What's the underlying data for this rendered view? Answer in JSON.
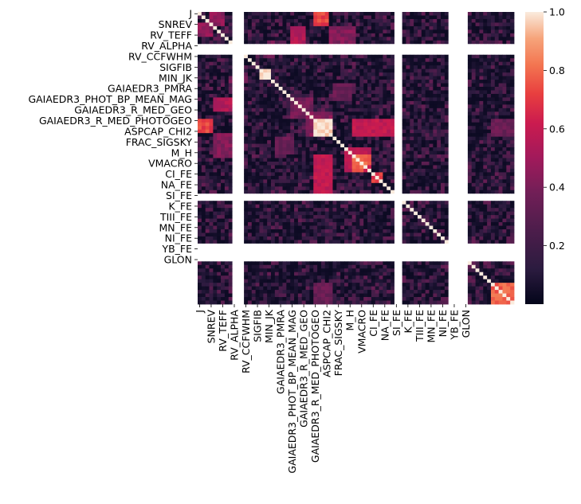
{
  "chart_data": {
    "type": "heatmap",
    "title": "",
    "xlabel": "",
    "ylabel": "",
    "n": 82,
    "tick_labels": [
      "J",
      "SNREV",
      "RV_TEFF",
      "RV_ALPHA",
      "RV_CCFWHM",
      "SIGFIB",
      "MIN_JK",
      "GAIAEDR3_PMRA",
      "GAIAEDR3_PHOT_BP_MEAN_MAG",
      "GAIAEDR3_R_MED_GEO",
      "GAIAEDR3_R_MED_PHOTOGEO",
      "ASPCAP_CHI2",
      "FRAC_SIGSKY",
      "M_H",
      "VMACRO",
      "CI_FE",
      "NA_FE",
      "SI_FE",
      "K_FE",
      "TIII_FE",
      "MN_FE",
      "NI_FE",
      "YB_FE",
      "GLON"
    ],
    "tick_positions": [
      0,
      3,
      6,
      9,
      12,
      15,
      18,
      21,
      24,
      27,
      30,
      33,
      36,
      39,
      42,
      45,
      48,
      51,
      54,
      57,
      60,
      63,
      66,
      69
    ],
    "colorbar": {
      "min": 0.0,
      "max": 1.0,
      "ticks": [
        "0.2",
        "0.4",
        "0.6",
        "0.8",
        "1.0"
      ],
      "tick_values": [
        0.2,
        0.4,
        0.6,
        0.8,
        1.0
      ]
    },
    "nan_rows_cols": [
      9,
      10,
      11,
      51,
      52,
      65,
      66,
      67,
      68,
      69
    ],
    "blocks": [
      {
        "rows": [
          0,
          3
        ],
        "cols": [
          30,
          33
        ],
        "value": 0.72
      },
      {
        "rows": [
          0,
          3
        ],
        "cols": [
          3,
          6
        ],
        "value": 0.45
      },
      {
        "rows": [
          4,
          8
        ],
        "cols": [
          24,
          27
        ],
        "value": 0.55
      },
      {
        "rows": [
          26,
          29
        ],
        "cols": [
          24,
          29
        ],
        "value": 0.38
      },
      {
        "rows": [
          30,
          34
        ],
        "cols": [
          30,
          34
        ],
        "value": 0.97
      },
      {
        "rows": [
          28,
          33
        ],
        "cols": [
          28,
          34
        ],
        "value": 0.42
      },
      {
        "rows": [
          30,
          34
        ],
        "cols": [
          40,
          50
        ],
        "value": 0.55
      },
      {
        "rows": [
          40,
          50
        ],
        "cols": [
          30,
          34
        ],
        "value": 0.58
      },
      {
        "rows": [
          34,
          40
        ],
        "cols": [
          4,
          8
        ],
        "value": 0.42
      },
      {
        "rows": [
          35,
          39
        ],
        "cols": [
          20,
          24
        ],
        "value": 0.35
      },
      {
        "rows": [
          38,
          44
        ],
        "cols": [
          38,
          44
        ],
        "value": 0.55
      },
      {
        "rows": [
          40,
          44
        ],
        "cols": [
          40,
          42
        ],
        "value": 0.8
      },
      {
        "rows": [
          45,
          47
        ],
        "cols": [
          45,
          47
        ],
        "value": 0.7
      },
      {
        "rows": [
          76,
          81
        ],
        "cols": [
          76,
          81
        ],
        "value": 0.78
      },
      {
        "rows": [
          76,
          81
        ],
        "cols": [
          30,
          34
        ],
        "value": 0.35
      },
      {
        "rows": [
          9,
          12
        ],
        "cols": [
          9,
          12
        ],
        "value": 0.35
      },
      {
        "rows": [
          16,
          18
        ],
        "cols": [
          16,
          18
        ],
        "value": 0.95
      },
      {
        "rows": [
          18,
          19
        ],
        "cols": [
          8,
          12
        ],
        "value": 0.4
      }
    ]
  }
}
